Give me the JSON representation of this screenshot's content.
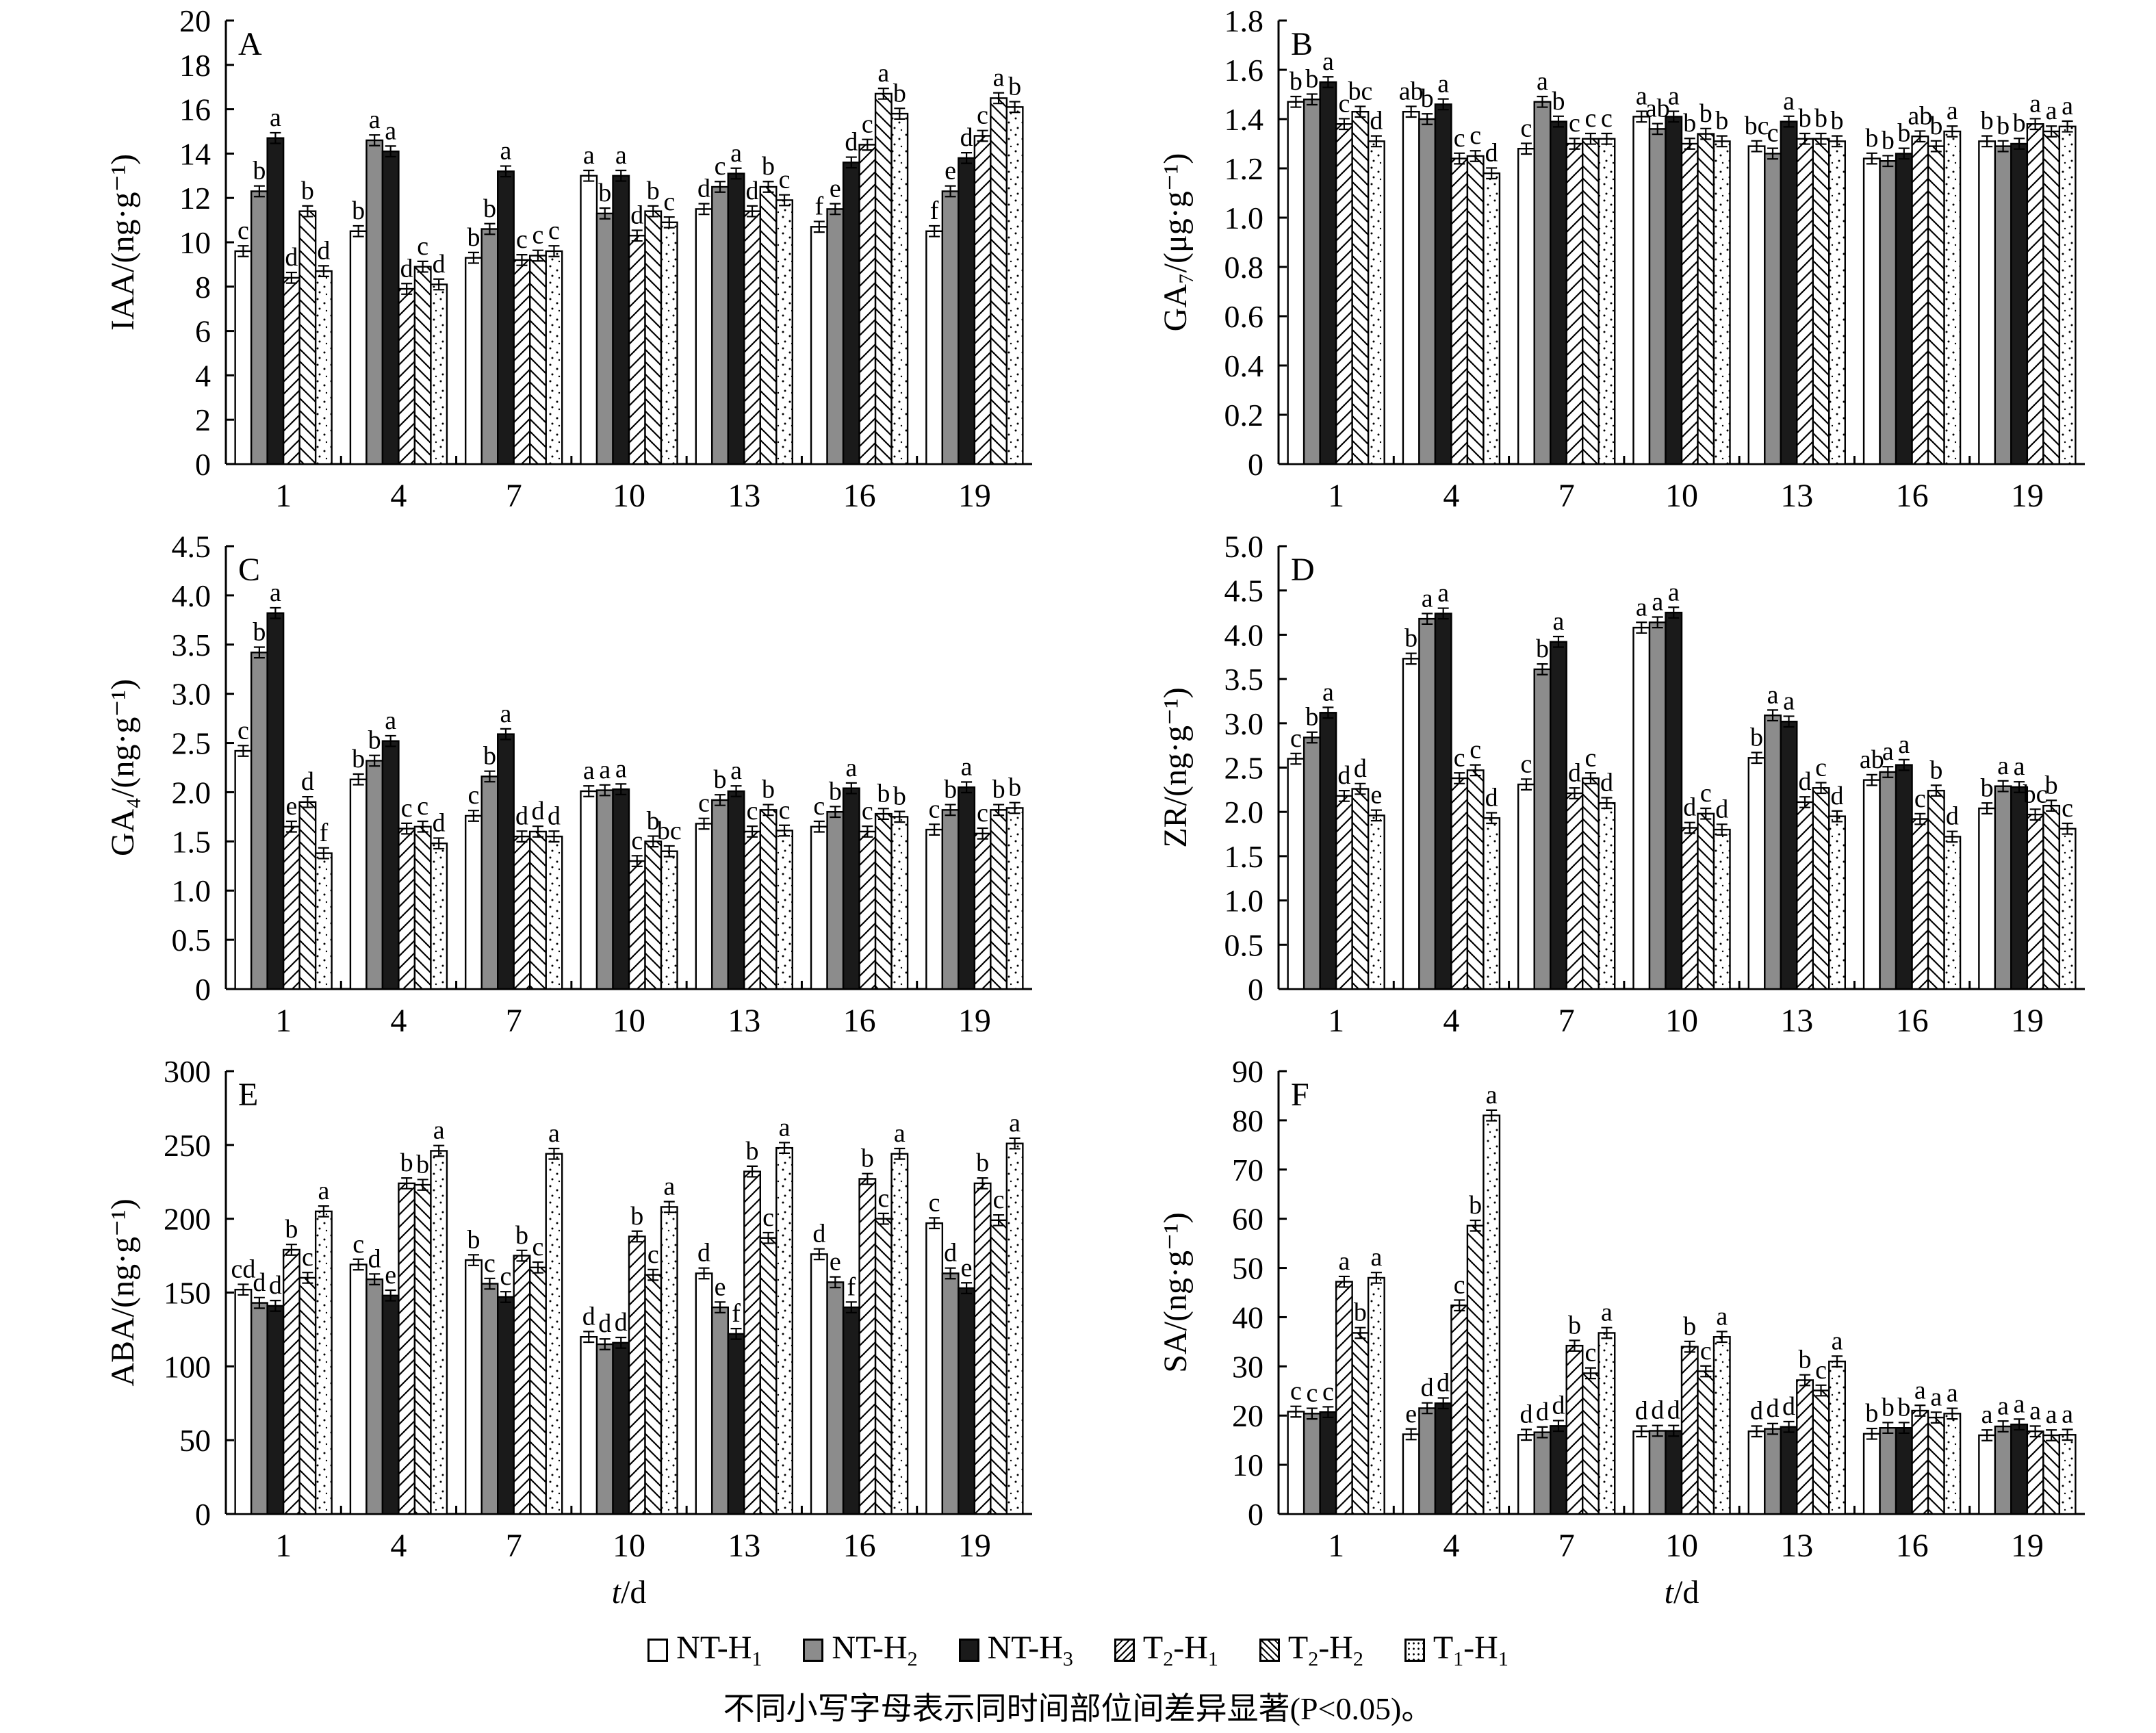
{
  "legend": [
    "NT-H1",
    "NT-H2",
    "NT-H3",
    "T2-H1",
    "T2-H2",
    "T1-H1"
  ],
  "colors": {
    "NT-H1": "#ffffff",
    "NT-H2": "#8c8c8c",
    "NT-H3": "#1a1a1a",
    "T2-H1": "hatch-fwd",
    "T2-H2": "hatch-back",
    "T1-H1": "dots"
  },
  "footnote": {
    "prefix": "不同小写字母表示同时间部位间差异显著",
    "stat": "(P<0.05)。"
  },
  "chart_data": [
    {
      "type": "bar",
      "panel": "A",
      "ylabel": "IAA/(ng·g⁻¹)",
      "xlabel": "",
      "ylim": [
        0,
        20
      ],
      "yticks": [
        0,
        2,
        4,
        6,
        8,
        10,
        12,
        14,
        16,
        18,
        20
      ],
      "categories": [
        "1",
        "4",
        "7",
        "10",
        "13",
        "16",
        "19"
      ],
      "series": [
        {
          "name": "NT-H1",
          "values": [
            9.6,
            10.5,
            9.3,
            13.0,
            11.5,
            10.7,
            10.5
          ]
        },
        {
          "name": "NT-H2",
          "values": [
            12.3,
            14.6,
            10.6,
            11.3,
            12.5,
            11.5,
            12.3
          ]
        },
        {
          "name": "NT-H3",
          "values": [
            14.7,
            14.1,
            13.2,
            13.0,
            13.1,
            13.6,
            13.8
          ]
        },
        {
          "name": "T2-H1",
          "values": [
            8.4,
            7.9,
            9.2,
            10.3,
            11.4,
            14.4,
            14.8
          ]
        },
        {
          "name": "T2-H2",
          "values": [
            11.4,
            8.9,
            9.4,
            11.4,
            12.5,
            16.7,
            16.5
          ]
        },
        {
          "name": "T1-H1",
          "values": [
            8.7,
            8.1,
            9.6,
            10.9,
            11.9,
            15.8,
            16.1
          ]
        }
      ],
      "letters": [
        [
          "c",
          "b",
          "a",
          "d",
          "b",
          "d"
        ],
        [
          "b",
          "a",
          "a",
          "d",
          "c",
          "d"
        ],
        [
          "b",
          "b",
          "a",
          "c",
          "c",
          "c"
        ],
        [
          "a",
          "b",
          "a",
          "d",
          "b",
          "c"
        ],
        [
          "d",
          "c",
          "a",
          "d",
          "b",
          "c"
        ],
        [
          "f",
          "e",
          "d",
          "c",
          "a",
          "b"
        ],
        [
          "f",
          "e",
          "d",
          "c",
          "a",
          "b"
        ]
      ]
    },
    {
      "type": "bar",
      "panel": "B",
      "ylabel": "GA₇/(μg·g⁻¹)",
      "xlabel": "",
      "ylim": [
        0,
        1.8
      ],
      "yticks": [
        "0",
        "0.2",
        "0.4",
        "0.6",
        "0.8",
        "1.0",
        "1.2",
        "1.4",
        "1.6",
        "1.8"
      ],
      "categories": [
        "1",
        "4",
        "7",
        "10",
        "13",
        "16",
        "19"
      ],
      "series": [
        {
          "name": "NT-H1",
          "values": [
            1.47,
            1.43,
            1.28,
            1.41,
            1.29,
            1.24,
            1.31
          ]
        },
        {
          "name": "NT-H2",
          "values": [
            1.48,
            1.4,
            1.47,
            1.36,
            1.26,
            1.23,
            1.29
          ]
        },
        {
          "name": "NT-H3",
          "values": [
            1.55,
            1.46,
            1.39,
            1.41,
            1.39,
            1.26,
            1.3
          ]
        },
        {
          "name": "T2-H1",
          "values": [
            1.38,
            1.24,
            1.3,
            1.3,
            1.32,
            1.33,
            1.38
          ]
        },
        {
          "name": "T2-H2",
          "values": [
            1.43,
            1.25,
            1.32,
            1.34,
            1.32,
            1.29,
            1.35
          ]
        },
        {
          "name": "T1-H1",
          "values": [
            1.31,
            1.18,
            1.32,
            1.31,
            1.31,
            1.35,
            1.37
          ]
        }
      ],
      "letters": [
        [
          "b",
          "b",
          "a",
          "c",
          "bc",
          "d"
        ],
        [
          "ab",
          "b",
          "a",
          "c",
          "c",
          "d"
        ],
        [
          "c",
          "a",
          "b",
          "c",
          "c",
          "c"
        ],
        [
          "a",
          "ab",
          "a",
          "b",
          "b",
          "b"
        ],
        [
          "bc",
          "c",
          "a",
          "b",
          "b",
          "b"
        ],
        [
          "b",
          "b",
          "b",
          "ab",
          "b",
          "a"
        ],
        [
          "b",
          "b",
          "b",
          "a",
          "a",
          "a"
        ]
      ]
    },
    {
      "type": "bar",
      "panel": "C",
      "ylabel": "GA₄/(ng·g⁻¹)",
      "xlabel": "",
      "ylim": [
        0,
        4.5
      ],
      "yticks": [
        "0",
        "0.5",
        "1.0",
        "1.5",
        "2.0",
        "2.5",
        "3.0",
        "3.5",
        "4.0",
        "4.5"
      ],
      "categories": [
        "1",
        "4",
        "7",
        "10",
        "13",
        "16",
        "19"
      ],
      "series": [
        {
          "name": "NT-H1",
          "values": [
            2.42,
            2.13,
            1.76,
            2.01,
            1.68,
            1.65,
            1.62
          ]
        },
        {
          "name": "NT-H2",
          "values": [
            3.42,
            2.32,
            2.16,
            2.02,
            1.92,
            1.8,
            1.82
          ]
        },
        {
          "name": "NT-H3",
          "values": [
            3.82,
            2.52,
            2.59,
            2.03,
            2.01,
            2.04,
            2.05
          ]
        },
        {
          "name": "T2-H1",
          "values": [
            1.65,
            1.63,
            1.55,
            1.3,
            1.6,
            1.6,
            1.58
          ]
        },
        {
          "name": "T2-H2",
          "values": [
            1.9,
            1.65,
            1.6,
            1.5,
            1.82,
            1.78,
            1.82
          ]
        },
        {
          "name": "T1-H1",
          "values": [
            1.38,
            1.48,
            1.55,
            1.4,
            1.61,
            1.75,
            1.84
          ]
        }
      ],
      "letters": [
        [
          "c",
          "b",
          "a",
          "e",
          "d",
          "f"
        ],
        [
          "b",
          "b",
          "a",
          "c",
          "c",
          "d"
        ],
        [
          "c",
          "b",
          "a",
          "d",
          "d",
          "d"
        ],
        [
          "a",
          "a",
          "a",
          "c",
          "b",
          "bc"
        ],
        [
          "c",
          "b",
          "a",
          "c",
          "b",
          "c"
        ],
        [
          "c",
          "b",
          "a",
          "c",
          "b",
          "b"
        ],
        [
          "c",
          "b",
          "a",
          "c",
          "b",
          "b"
        ]
      ]
    },
    {
      "type": "bar",
      "panel": "D",
      "ylabel": "ZR/(ng·g⁻¹)",
      "xlabel": "",
      "ylim": [
        0,
        5.0
      ],
      "yticks": [
        "0",
        "0.5",
        "1.0",
        "1.5",
        "2.0",
        "2.5",
        "3.0",
        "3.5",
        "4.0",
        "4.5",
        "5.0"
      ],
      "categories": [
        "1",
        "4",
        "7",
        "10",
        "13",
        "16",
        "19"
      ],
      "series": [
        {
          "name": "NT-H1",
          "values": [
            2.6,
            3.73,
            2.31,
            4.08,
            2.61,
            2.36,
            2.04
          ]
        },
        {
          "name": "NT-H2",
          "values": [
            2.84,
            4.18,
            3.61,
            4.14,
            3.09,
            2.45,
            2.29
          ]
        },
        {
          "name": "NT-H3",
          "values": [
            3.12,
            4.24,
            3.92,
            4.25,
            3.02,
            2.53,
            2.28
          ]
        },
        {
          "name": "T2-H1",
          "values": [
            2.18,
            2.38,
            2.21,
            1.82,
            2.11,
            1.92,
            1.97
          ]
        },
        {
          "name": "T2-H2",
          "values": [
            2.26,
            2.47,
            2.38,
            1.98,
            2.27,
            2.24,
            2.07
          ]
        },
        {
          "name": "T1-H1",
          "values": [
            1.96,
            1.93,
            2.1,
            1.8,
            1.95,
            1.72,
            1.81
          ]
        }
      ],
      "letters": [
        [
          "c",
          "b",
          "a",
          "d",
          "d",
          "e"
        ],
        [
          "b",
          "a",
          "a",
          "c",
          "c",
          "d"
        ],
        [
          "c",
          "b",
          "a",
          "d",
          "c",
          "d"
        ],
        [
          "a",
          "a",
          "a",
          "d",
          "c",
          "d"
        ],
        [
          "b",
          "a",
          "a",
          "d",
          "c",
          "d"
        ],
        [
          "ab",
          "a",
          "a",
          "c",
          "b",
          "d"
        ],
        [
          "b",
          "a",
          "a",
          "bc",
          "b",
          "c"
        ]
      ]
    },
    {
      "type": "bar",
      "panel": "E",
      "ylabel": "ABA/(ng·g⁻¹)",
      "xlabel": "t/d",
      "ylim": [
        0,
        300
      ],
      "yticks": [
        0,
        50,
        100,
        150,
        200,
        250,
        300
      ],
      "categories": [
        "1",
        "4",
        "7",
        "10",
        "13",
        "16",
        "19"
      ],
      "series": [
        {
          "name": "NT-H1",
          "values": [
            152,
            169,
            172,
            120,
            163,
            176,
            197
          ]
        },
        {
          "name": "NT-H2",
          "values": [
            143,
            159,
            156,
            115,
            140,
            157,
            163
          ]
        },
        {
          "name": "NT-H3",
          "values": [
            141,
            148,
            147,
            116,
            122,
            140,
            153
          ]
        },
        {
          "name": "T2-H1",
          "values": [
            179,
            224,
            175,
            188,
            232,
            227,
            224
          ]
        },
        {
          "name": "T2-H2",
          "values": [
            160,
            223,
            167,
            162,
            187,
            200,
            199
          ]
        },
        {
          "name": "T1-H1",
          "values": [
            205,
            246,
            244,
            208,
            248,
            244,
            251
          ]
        }
      ],
      "letters": [
        [
          "cd",
          "d",
          "d",
          "b",
          "c",
          "a"
        ],
        [
          "c",
          "d",
          "e",
          "b",
          "b",
          "a"
        ],
        [
          "b",
          "c",
          "c",
          "b",
          "c",
          "a"
        ],
        [
          "d",
          "d",
          "d",
          "b",
          "c",
          "a"
        ],
        [
          "d",
          "e",
          "f",
          "b",
          "c",
          "a"
        ],
        [
          "d",
          "e",
          "f",
          "b",
          "c",
          "a"
        ],
        [
          "c",
          "d",
          "e",
          "b",
          "c",
          "a"
        ]
      ]
    },
    {
      "type": "bar",
      "panel": "F",
      "ylabel": "SA/(ng·g⁻¹)",
      "xlabel": "t/d",
      "ylim": [
        0,
        90
      ],
      "yticks": [
        0,
        10,
        20,
        30,
        40,
        50,
        60,
        70,
        80,
        90
      ],
      "categories": [
        "1",
        "4",
        "7",
        "10",
        "13",
        "16",
        "19"
      ],
      "series": [
        {
          "name": "NT-H1",
          "values": [
            20.8,
            16.2,
            16.1,
            16.8,
            16.8,
            16.3,
            16.0
          ]
        },
        {
          "name": "NT-H2",
          "values": [
            20.4,
            21.5,
            16.6,
            16.9,
            17.3,
            17.5,
            17.8
          ]
        },
        {
          "name": "NT-H3",
          "values": [
            20.7,
            22.5,
            17.9,
            16.9,
            17.7,
            17.5,
            18.2
          ]
        },
        {
          "name": "T2-H1",
          "values": [
            47.2,
            42.4,
            34.2,
            34.0,
            27.2,
            21.0,
            16.8
          ]
        },
        {
          "name": "T2-H2",
          "values": [
            36.8,
            58.6,
            28.6,
            29.0,
            25.1,
            19.6,
            16.0
          ]
        },
        {
          "name": "T1-H1",
          "values": [
            48.0,
            81.0,
            36.8,
            36.0,
            31.0,
            20.4,
            16.1
          ]
        }
      ],
      "letters": [
        [
          "c",
          "c",
          "c",
          "a",
          "b",
          "a"
        ],
        [
          "e",
          "d",
          "d",
          "c",
          "b",
          "a"
        ],
        [
          "d",
          "d",
          "d",
          "b",
          "c",
          "a"
        ],
        [
          "d",
          "d",
          "d",
          "b",
          "c",
          "a"
        ],
        [
          "d",
          "d",
          "d",
          "b",
          "c",
          "a"
        ],
        [
          "b",
          "b",
          "b",
          "a",
          "a",
          "a"
        ],
        [
          "a",
          "a",
          "a",
          "a",
          "a",
          "a"
        ]
      ]
    }
  ]
}
